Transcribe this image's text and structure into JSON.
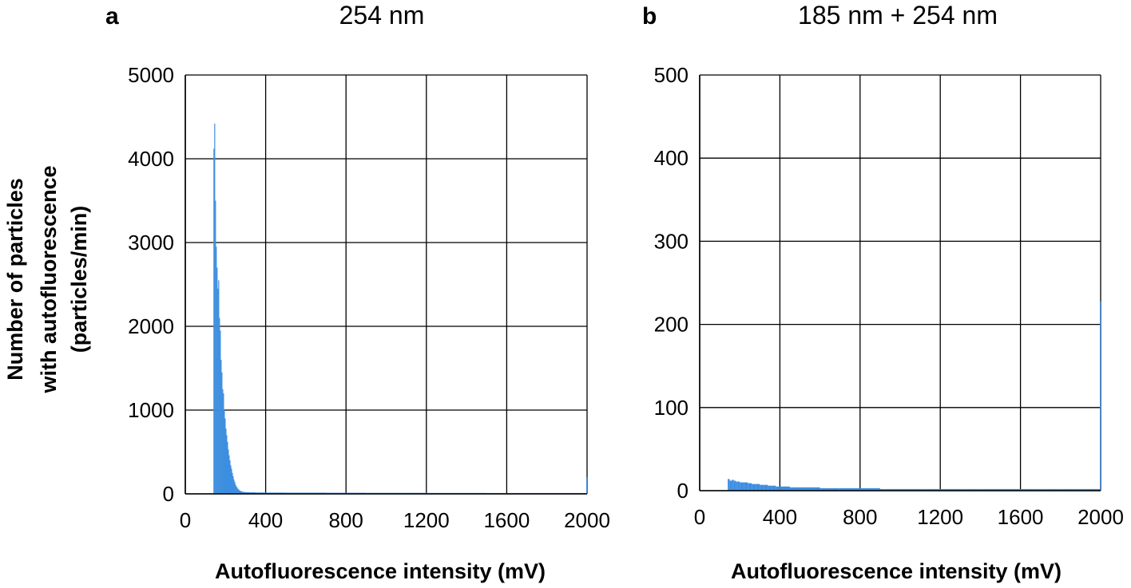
{
  "y_axis_label": [
    "Number of particles",
    "with autofluorescence",
    "(particles/min)"
  ],
  "bar_color": "#3d8ee0",
  "chart_data": [
    {
      "type": "bar",
      "panel": "a",
      "title": "254 nm",
      "xlabel": "Autofluorescence intensity (mV)",
      "ylabel": "Number of particles with autofluorescence (particles/min)",
      "xlim": [
        0,
        2000
      ],
      "ylim": [
        0,
        5000
      ],
      "xticks": [
        0,
        400,
        800,
        1200,
        1600,
        2000
      ],
      "yticks": [
        0,
        1000,
        2000,
        3000,
        4000,
        5000
      ],
      "grid": true,
      "x": [
        140,
        144,
        148,
        152,
        156,
        160,
        164,
        168,
        172,
        176,
        180,
        184,
        188,
        192,
        196,
        200,
        204,
        208,
        212,
        216,
        220,
        224,
        228,
        232,
        236,
        240,
        244,
        248,
        252,
        256,
        260,
        264,
        268,
        272,
        276,
        280,
        290,
        300,
        320,
        350,
        400,
        500,
        600,
        700,
        800,
        900,
        1000,
        1100,
        1200,
        1300,
        1400,
        1500,
        1600,
        1700,
        1800,
        1900,
        1996
      ],
      "values": [
        4120,
        4420,
        3500,
        2950,
        2700,
        2450,
        2550,
        2100,
        1950,
        1600,
        1450,
        1250,
        1200,
        1000,
        900,
        780,
        700,
        620,
        530,
        460,
        400,
        340,
        300,
        250,
        210,
        170,
        140,
        110,
        90,
        75,
        60,
        50,
        42,
        36,
        30,
        26,
        22,
        20,
        18,
        16,
        15,
        14,
        14,
        13,
        13,
        12,
        12,
        12,
        11,
        11,
        11,
        10,
        10,
        10,
        10,
        10,
        200
      ]
    },
    {
      "type": "bar",
      "panel": "b",
      "title": "185 nm + 254 nm",
      "xlabel": "Autofluorescence intensity (mV)",
      "ylabel": "Number of particles with autofluorescence (particles/min)",
      "xlim": [
        0,
        2000
      ],
      "ylim": [
        0,
        500
      ],
      "xticks": [
        0,
        400,
        800,
        1200,
        1600,
        2000
      ],
      "yticks": [
        0,
        100,
        200,
        300,
        400,
        500
      ],
      "grid": true,
      "x": [
        140,
        150,
        160,
        170,
        180,
        190,
        200,
        220,
        240,
        260,
        280,
        300,
        320,
        340,
        360,
        380,
        400,
        450,
        500,
        600,
        700,
        800,
        900,
        1000,
        1100,
        1200,
        1300,
        1400,
        1500,
        1600,
        1700,
        1800,
        1900,
        1996
      ],
      "values": [
        14,
        12,
        13,
        12,
        11,
        11,
        10,
        10,
        9,
        8,
        8,
        7,
        7,
        6,
        6,
        5,
        5,
        4,
        4,
        3,
        3,
        3,
        2,
        2,
        2,
        2,
        2,
        2,
        2,
        2,
        2,
        2,
        2,
        228
      ]
    }
  ]
}
